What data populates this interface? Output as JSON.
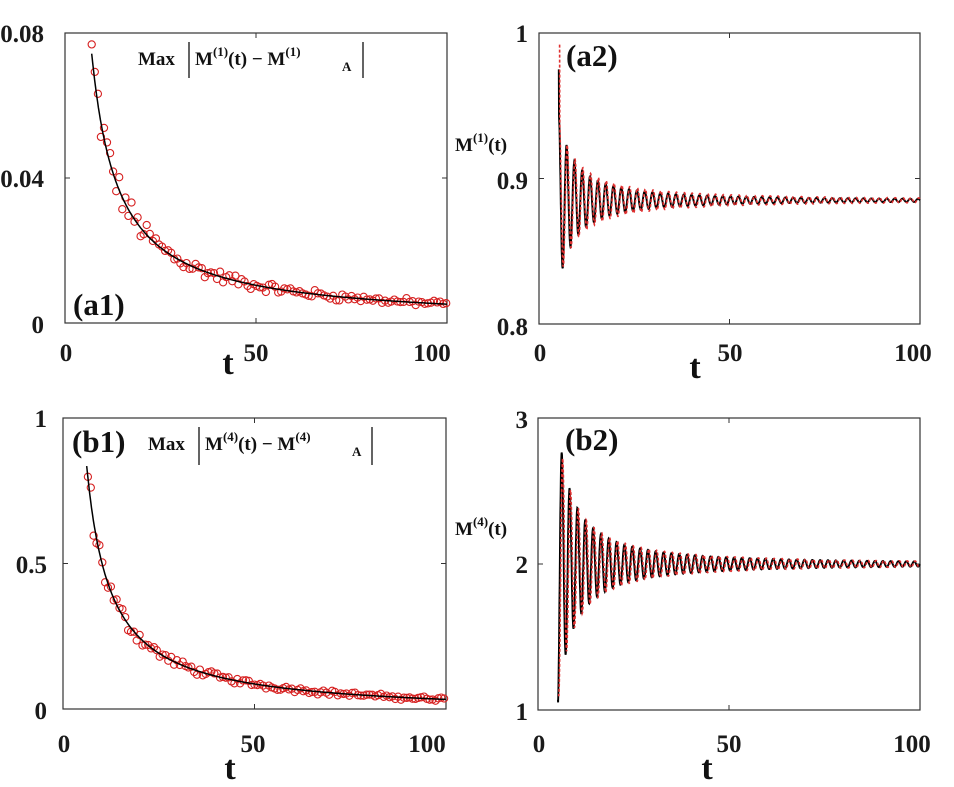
{
  "figure": {
    "description_style": "four-panel convergence plot"
  },
  "chart_data": [
    {
      "id": "a1",
      "type": "scatter",
      "panel_label": "(a1)",
      "annotation": {
        "prefix": "Max",
        "term_a": "M",
        "sup_a": "(1)",
        "arg": "(t) − ",
        "term_b": "M",
        "sup_b": "(1)",
        "sub_b": "A"
      },
      "xlabel": "t",
      "ylabel": "",
      "xlim": [
        0,
        100
      ],
      "ylim": [
        0,
        0.08
      ],
      "xticks": [
        0,
        50,
        100
      ],
      "xtick_labels": [
        "0",
        "50",
        "100"
      ],
      "yticks": [
        0,
        0.04,
        0.08
      ],
      "ytick_labels": [
        "0",
        "0.04",
        "0.08"
      ],
      "series": [
        {
          "name": "fit",
          "kind": "line",
          "color": "#000000",
          "model": "power",
          "a": 0.52,
          "p": 1.0,
          "c": 0.0,
          "x_start": 7,
          "x_end": 100
        },
        {
          "name": "numerical",
          "kind": "markers",
          "color": "#d62020",
          "x_start": 7,
          "x_end": 100,
          "step": 0.8,
          "noise": 0.12
        }
      ]
    },
    {
      "id": "a2",
      "type": "line",
      "panel_label": "(a2)",
      "ylabel": {
        "base": "M",
        "sup": "(1)",
        "arg": "(t)"
      },
      "xlabel": "t",
      "xlim": [
        0,
        100
      ],
      "ylim": [
        0.8,
        1.0
      ],
      "xticks": [
        0,
        50,
        100
      ],
      "xtick_labels": [
        "0",
        "50",
        "100"
      ],
      "yticks": [
        0.8,
        0.9,
        1.0
      ],
      "ytick_labels": [
        "0.8",
        "0.9",
        "1"
      ],
      "series": [
        {
          "name": "numerical",
          "kind": "line",
          "color": "#000000",
          "offset": 0.885,
          "amp_a": 0.55,
          "amp_p": 1.35,
          "period": 2.05,
          "x_start": 5.2,
          "x_end": 100,
          "phase": 0.0,
          "start_value": 0.975
        },
        {
          "name": "asymptotic",
          "kind": "dashed",
          "color": "#e03030",
          "offset": 0.885,
          "amp_a": 0.42,
          "amp_p": 1.2,
          "period": 2.05,
          "x_start": 5.4,
          "x_end": 100,
          "phase": 0.15,
          "start_value": 0.992
        }
      ]
    },
    {
      "id": "b1",
      "type": "scatter",
      "panel_label": "(b1)",
      "annotation": {
        "prefix": "Max",
        "term_a": "M",
        "sup_a": "(4)",
        "arg": "(t) − ",
        "term_b": "M",
        "sup_b": "(4)",
        "sub_b": "A"
      },
      "xlabel": "t",
      "ylabel": "",
      "xlim": [
        0,
        100
      ],
      "ylim": [
        0,
        1
      ],
      "xticks": [
        0,
        50,
        100
      ],
      "xtick_labels": [
        "0",
        "50",
        "100"
      ],
      "yticks": [
        0,
        0.5,
        1
      ],
      "ytick_labels": [
        "0",
        "0.5",
        "1"
      ],
      "series": [
        {
          "name": "fit",
          "kind": "line",
          "color": "#000000",
          "model": "power",
          "a": 5.3,
          "p": 1.0,
          "c": -0.02,
          "x_start": 6.2,
          "x_end": 100
        },
        {
          "name": "numerical",
          "kind": "markers",
          "color": "#d62020",
          "x_start": 6.5,
          "x_end": 100,
          "step": 0.75,
          "noise": 0.08
        }
      ]
    },
    {
      "id": "b2",
      "type": "line",
      "panel_label": "(b2)",
      "ylabel": {
        "base": "M",
        "sup": "(4)",
        "arg": "(t)"
      },
      "xlabel": "t",
      "xlim": [
        0,
        100
      ],
      "ylim": [
        1,
        3
      ],
      "xticks": [
        0,
        50,
        100
      ],
      "xtick_labels": [
        "0",
        "50",
        "100"
      ],
      "yticks": [
        1,
        2,
        3
      ],
      "ytick_labels": [
        "1",
        "2",
        "3"
      ],
      "series": [
        {
          "name": "numerical",
          "kind": "line",
          "color": "#000000",
          "offset": 2.0,
          "amp_a": 9.0,
          "amp_p": 1.35,
          "period": 2.05,
          "x_start": 5.2,
          "x_end": 100,
          "phase": 3.14159,
          "start_value": 1.07
        },
        {
          "name": "asymptotic",
          "kind": "dashed",
          "color": "#e03030",
          "offset": 2.0,
          "amp_a": 8.2,
          "amp_p": 1.3,
          "period": 2.05,
          "x_start": 5.4,
          "x_end": 100,
          "phase": 3.0,
          "start_value": 1.1
        }
      ]
    }
  ]
}
